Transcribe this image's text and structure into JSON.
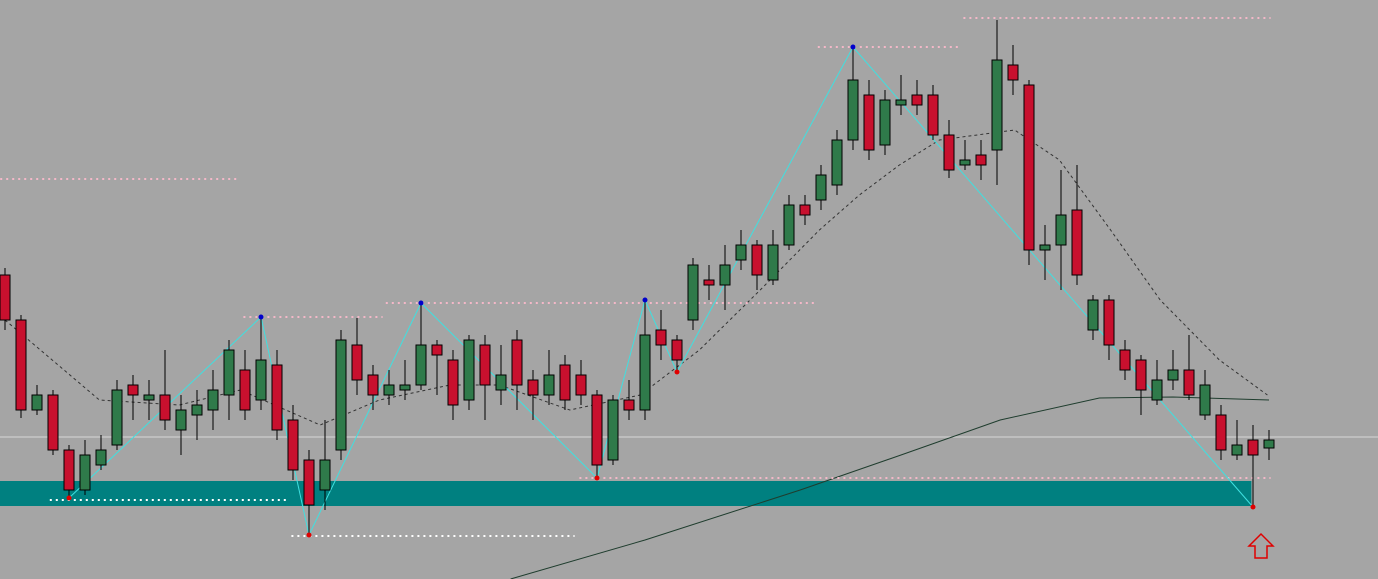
{
  "chart_data": {
    "type": "candlestick",
    "background": "#a5a5a5",
    "x": [
      0,
      1,
      2,
      3,
      4,
      5,
      6,
      7,
      8,
      9,
      10,
      11,
      12,
      13,
      14,
      15,
      16,
      17,
      18,
      19,
      20,
      21,
      22,
      23,
      24,
      25,
      26,
      27,
      28,
      29,
      30,
      31,
      32,
      33,
      34,
      35,
      36,
      37,
      38,
      39,
      40,
      41,
      42,
      43,
      44,
      45,
      46,
      47,
      48,
      49,
      50,
      51,
      52,
      53,
      54,
      55,
      56,
      57,
      58,
      59,
      60,
      61,
      62,
      63,
      64,
      65,
      66,
      67,
      68,
      69,
      70,
      71,
      72,
      73,
      74,
      75,
      76,
      77,
      78,
      79
    ],
    "xlim": [
      -0.3125,
      85.8125
    ],
    "ylim": [
      21,
      600
    ],
    "up_color": "#2f7a4a",
    "down_color": "#c8102e",
    "wick_color": "#000000",
    "open": [
      325,
      280,
      190,
      205,
      150,
      110,
      135,
      155,
      215,
      200,
      205,
      170,
      185,
      190,
      205,
      230,
      200,
      235,
      180,
      140,
      110,
      150,
      255,
      225,
      205,
      210,
      215,
      255,
      240,
      200,
      255,
      210,
      260,
      220,
      205,
      235,
      225,
      205,
      140,
      200,
      190,
      270,
      260,
      280,
      320,
      315,
      340,
      355,
      320,
      355,
      395,
      400,
      415,
      460,
      505,
      455,
      495,
      505,
      505,
      465,
      435,
      445,
      450,
      535,
      515,
      350,
      355,
      390,
      270,
      300,
      250,
      240,
      200,
      220,
      230,
      185,
      185,
      145,
      160,
      152
    ],
    "high": [
      332,
      285,
      215,
      210,
      155,
      160,
      165,
      220,
      225,
      220,
      250,
      205,
      210,
      230,
      260,
      250,
      283,
      250,
      195,
      150,
      180,
      270,
      282,
      235,
      230,
      240,
      297,
      260,
      250,
      265,
      265,
      255,
      270,
      230,
      250,
      245,
      240,
      210,
      205,
      220,
      300,
      290,
      265,
      342,
      335,
      355,
      370,
      360,
      370,
      405,
      405,
      435,
      470,
      553,
      520,
      510,
      525,
      520,
      515,
      480,
      460,
      460,
      580,
      555,
      520,
      375,
      430,
      435,
      305,
      305,
      260,
      245,
      240,
      250,
      265,
      230,
      195,
      180,
      175,
      170
    ],
    "low": [
      270,
      182,
      185,
      145,
      102,
      105,
      130,
      150,
      180,
      180,
      170,
      145,
      160,
      170,
      180,
      180,
      190,
      160,
      120,
      65,
      90,
      140,
      205,
      190,
      195,
      200,
      210,
      205,
      180,
      190,
      180,
      195,
      190,
      180,
      195,
      190,
      195,
      122,
      135,
      180,
      180,
      240,
      228,
      270,
      300,
      290,
      330,
      310,
      315,
      350,
      375,
      390,
      405,
      450,
      440,
      445,
      485,
      485,
      460,
      422,
      430,
      420,
      415,
      505,
      335,
      320,
      310,
      315,
      260,
      240,
      220,
      185,
      195,
      210,
      200,
      180,
      140,
      140,
      93,
      140
    ],
    "close": [
      280,
      190,
      205,
      150,
      110,
      145,
      150,
      210,
      205,
      205,
      180,
      190,
      195,
      210,
      250,
      190,
      240,
      170,
      130,
      95,
      140,
      260,
      220,
      205,
      215,
      215,
      255,
      245,
      195,
      260,
      215,
      225,
      215,
      205,
      225,
      200,
      205,
      135,
      200,
      190,
      265,
      255,
      240,
      335,
      315,
      335,
      355,
      325,
      355,
      395,
      385,
      425,
      460,
      520,
      450,
      500,
      500,
      495,
      465,
      430,
      440,
      435,
      540,
      520,
      350,
      355,
      385,
      325,
      300,
      255,
      230,
      210,
      220,
      230,
      205,
      215,
      150,
      155,
      145,
      160
    ],
    "price_line": {
      "value": 163,
      "color": "#d8d8d8"
    },
    "zone": {
      "from": 94,
      "to": 119,
      "start": -0.3125,
      "end": 77.9,
      "color": "#008080"
    },
    "levels": [
      {
        "start": -0.3,
        "end": 14.6,
        "value": 421,
        "color": "#f4b8c8"
      },
      {
        "start": 14.9,
        "end": 23.6,
        "value": 283,
        "color": "#f4b8c8"
      },
      {
        "start": 23.8,
        "end": 50.6,
        "value": 297,
        "color": "#f4b8c8"
      },
      {
        "start": 50.8,
        "end": 59.6,
        "value": 553,
        "color": "#f4b8c8"
      },
      {
        "start": 59.9,
        "end": 79.1,
        "value": 582,
        "color": "#f4b8c8"
      },
      {
        "start": 35.9,
        "end": 79.1,
        "value": 122,
        "color": "#f4b8c8"
      },
      {
        "start": 2.8,
        "end": 17.8,
        "value": 100,
        "color": "#ffffff"
      },
      {
        "start": 17.9,
        "end": 35.6,
        "value": 64,
        "color": "#ffffff"
      }
    ],
    "zigzag": {
      "color": "#3fe0e0",
      "x": [
        4,
        16,
        19,
        26,
        37,
        40,
        42,
        53,
        78
      ],
      "values": [
        102,
        283,
        65,
        297,
        122,
        300,
        228,
        553,
        93
      ],
      "point_colors": [
        "#e00000",
        "#0000cc",
        "#e00000",
        "#0000cc",
        "#e00000",
        "#0000cc",
        "#e00000",
        "#0000cc",
        "#e00000"
      ]
    },
    "ma_fast": {
      "color": "#333333",
      "x": [
        0,
        5.9,
        10.9,
        14.7,
        19.7,
        23.4,
        27.8,
        30.9,
        35.3,
        39.7,
        43.4,
        47.2,
        50.9,
        53.4,
        55.9,
        58.4,
        63.1,
        65.9,
        69.1,
        72.2,
        75.9,
        78.9
      ],
      "values": [
        280,
        200,
        195,
        210,
        175,
        200,
        215,
        215,
        190,
        205,
        250,
        310,
        370,
        405,
        435,
        460,
        470,
        440,
        370,
        300,
        240,
        205
      ]
    },
    "ma_slow": {
      "color": "#1f3d2e",
      "x": [
        31.6,
        40,
        49.7,
        56,
        62.2,
        68.4,
        73,
        79
      ],
      "values": [
        21,
        60,
        110,
        145,
        180,
        202,
        203,
        200
      ]
    }
  }
}
